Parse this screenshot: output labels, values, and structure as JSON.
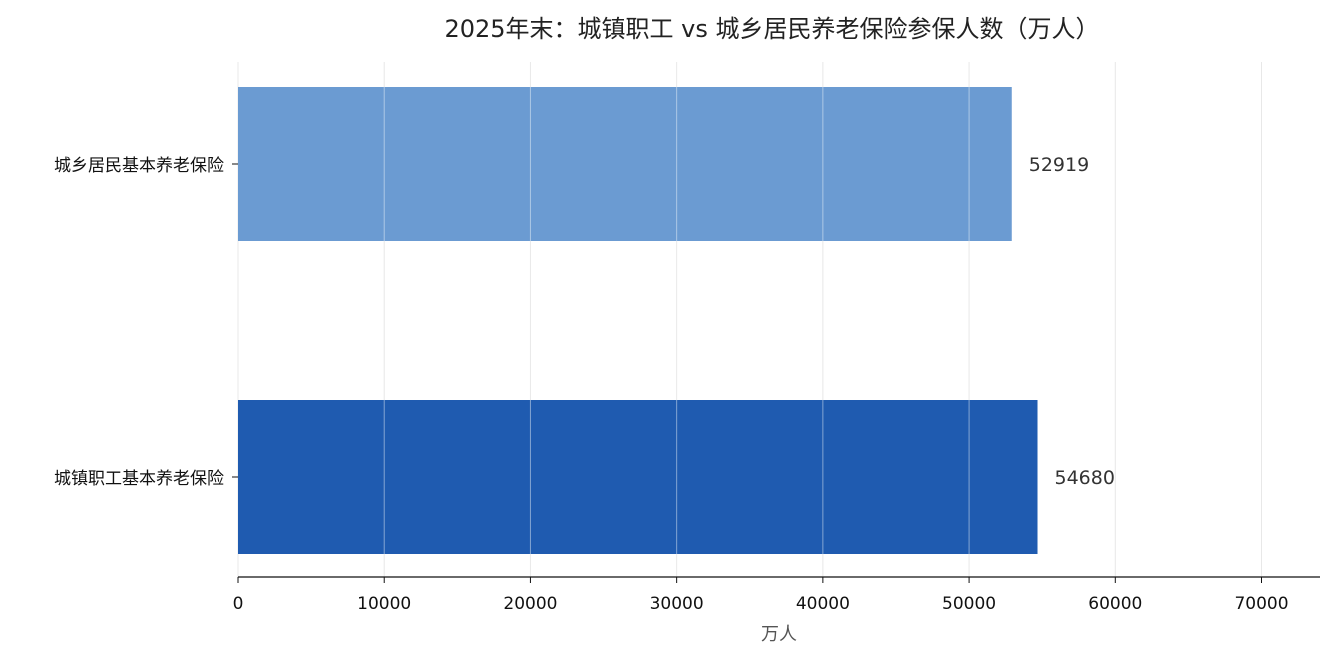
{
  "chart_data": {
    "type": "bar",
    "orientation": "horizontal",
    "title": "2025年末：城镇职工 vs 城乡居民养老保险参保人数（万人）",
    "xlabel": "万人",
    "ylabel": "",
    "categories": [
      "城乡居民基本养老保险",
      "城镇职工基本养老保险"
    ],
    "values": [
      52919,
      54680
    ],
    "value_labels": [
      "52919",
      "54680"
    ],
    "bar_colors": [
      "#6b9bd2",
      "#1f5bb0"
    ],
    "xlim": [
      0,
      74000
    ],
    "xticks": [
      0,
      10000,
      20000,
      30000,
      40000,
      50000,
      60000,
      70000
    ],
    "xtick_labels": [
      "0",
      "10000",
      "20000",
      "30000",
      "40000",
      "50000",
      "60000",
      "70000"
    ],
    "grid": "vertical",
    "legend": "none"
  }
}
